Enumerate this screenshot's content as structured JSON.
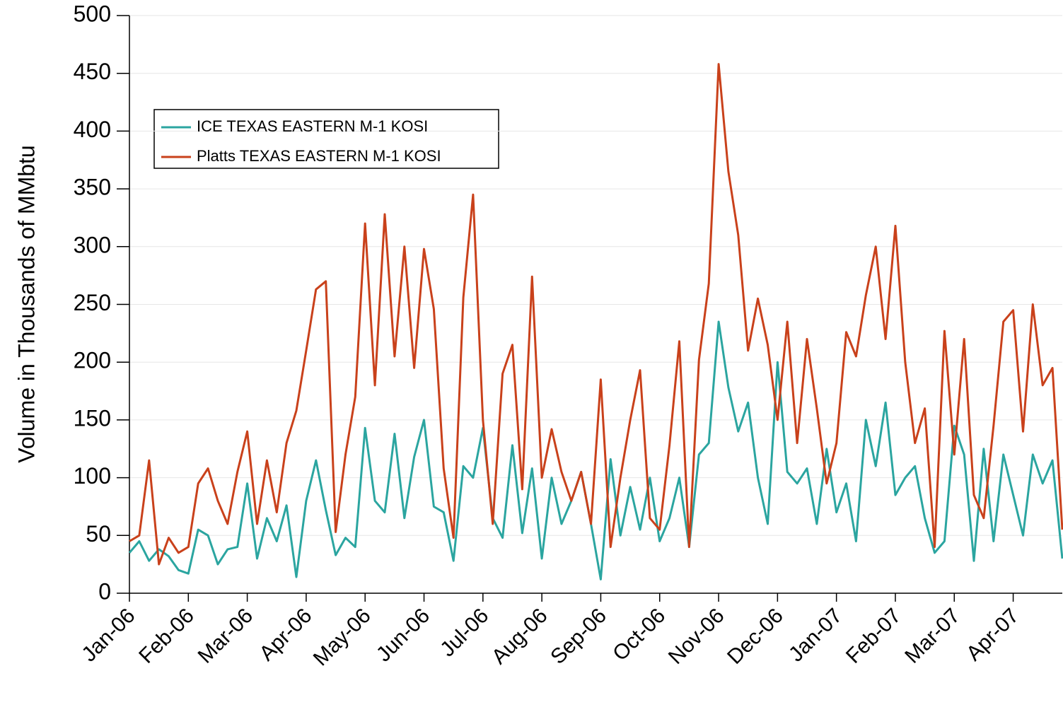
{
  "chart_data": {
    "type": "line",
    "y_label": "Volume in Thousands of MMbtu",
    "categories": [
      "Jan-06",
      null,
      null,
      null,
      null,
      null,
      "Feb-06",
      null,
      null,
      null,
      null,
      null,
      "Mar-06",
      null,
      null,
      null,
      null,
      null,
      "Apr-06",
      null,
      null,
      null,
      null,
      null,
      "May-06",
      null,
      null,
      null,
      null,
      null,
      "Jun-06",
      null,
      null,
      null,
      null,
      null,
      "Jul-06",
      null,
      null,
      null,
      null,
      null,
      "Aug-06",
      null,
      null,
      null,
      null,
      null,
      "Sep-06",
      null,
      null,
      null,
      null,
      null,
      "Oct-06",
      null,
      null,
      null,
      null,
      null,
      "Nov-06",
      null,
      null,
      null,
      null,
      null,
      "Dec-06",
      null,
      null,
      null,
      null,
      null,
      "Jan-07",
      null,
      null,
      null,
      null,
      null,
      "Feb-07",
      null,
      null,
      null,
      null,
      null,
      "Mar-07",
      null,
      null,
      null,
      null,
      null,
      "Apr-07",
      null,
      null,
      null,
      null,
      null
    ],
    "series": [
      {
        "name": "ICE TEXAS EASTERN M-1 KOSI",
        "color": "#2ba5a0",
        "values": [
          35,
          45,
          28,
          38,
          32,
          20,
          17,
          55,
          50,
          25,
          38,
          40,
          95,
          30,
          65,
          45,
          76,
          14,
          80,
          115,
          72,
          33,
          48,
          40,
          143,
          80,
          70,
          138,
          65,
          118,
          150,
          75,
          70,
          28,
          110,
          100,
          143,
          65,
          48,
          128,
          52,
          108,
          30,
          100,
          60,
          80,
          105,
          60,
          12,
          116,
          50,
          92,
          55,
          100,
          45,
          65,
          100,
          40,
          120,
          130,
          235,
          178,
          140,
          165,
          100,
          60,
          200,
          105,
          95,
          108,
          60,
          125,
          70,
          95,
          45,
          150,
          110,
          165,
          85,
          100,
          110,
          65,
          35,
          45,
          145,
          120,
          28,
          125,
          45,
          120,
          85,
          50,
          120,
          95,
          115,
          30
        ]
      },
      {
        "name": "Platts TEXAS EASTERN M-1 KOSI",
        "color": "#c9411b",
        "values": [
          45,
          50,
          115,
          25,
          48,
          35,
          40,
          95,
          108,
          80,
          60,
          105,
          140,
          60,
          115,
          70,
          130,
          158,
          210,
          263,
          270,
          53,
          120,
          170,
          320,
          180,
          328,
          205,
          300,
          195,
          298,
          246,
          108,
          48,
          256,
          345,
          150,
          60,
          190,
          215,
          90,
          274,
          100,
          142,
          105,
          80,
          105,
          60,
          185,
          40,
          100,
          150,
          193,
          65,
          55,
          128,
          218,
          40,
          202,
          268,
          458,
          365,
          310,
          210,
          255,
          215,
          150,
          235,
          130,
          220,
          160,
          95,
          130,
          226,
          205,
          258,
          300,
          220,
          318,
          200,
          130,
          160,
          40,
          227,
          120,
          220,
          85,
          65,
          145,
          235,
          245,
          140,
          250,
          180,
          195,
          55
        ]
      }
    ],
    "ylim": [
      0,
      500
    ],
    "yticks": [
      0,
      50,
      100,
      150,
      200,
      250,
      300,
      350,
      400,
      450,
      500
    ],
    "grid": true
  }
}
